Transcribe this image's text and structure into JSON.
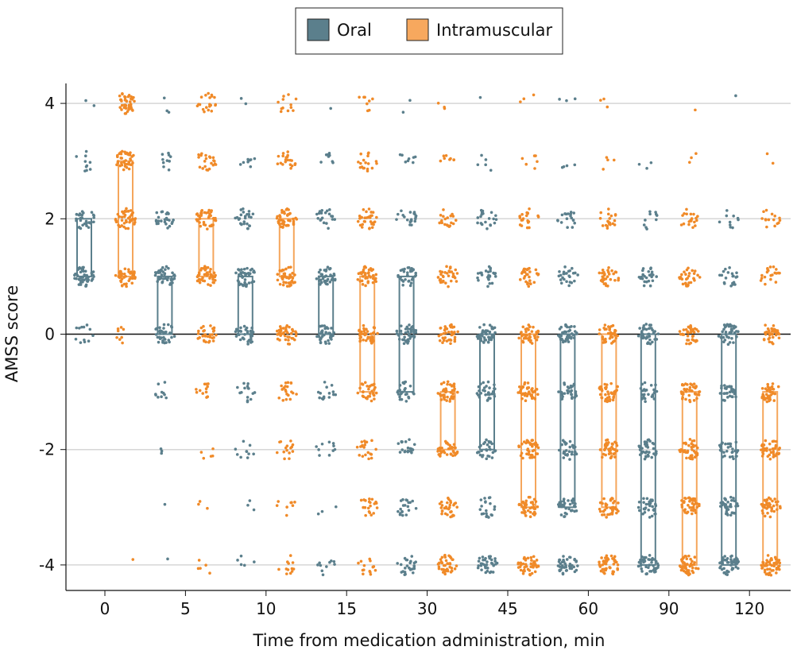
{
  "chart_data": {
    "type": "scatter",
    "subtype": "jittered strip plot with interquartile boxes",
    "title": "",
    "xlabel": "Time from medication administration, min",
    "ylabel": "AMSS score",
    "categories": [
      "0",
      "5",
      "10",
      "15",
      "30",
      "45",
      "60",
      "90",
      "120"
    ],
    "yticks": [
      4,
      2,
      0,
      -2,
      -4
    ],
    "ylim": [
      -4,
      4
    ],
    "grid": "horizontal",
    "legend_position": "top-center",
    "score_levels": [
      4,
      3,
      2,
      1,
      0,
      -1,
      -2,
      -3,
      -4
    ],
    "series": [
      {
        "name": "Oral",
        "color": "#5b7f8c",
        "iqr": [
          [
            1,
            2
          ],
          [
            0,
            1
          ],
          [
            0,
            1
          ],
          [
            0,
            1
          ],
          [
            -1,
            1
          ],
          [
            -2,
            0
          ],
          [
            -3,
            0
          ],
          [
            -4,
            0
          ],
          [
            -4,
            0
          ]
        ],
        "counts_per_level": [
          [
            2,
            10,
            30,
            50,
            12,
            0,
            0,
            0,
            0
          ],
          [
            3,
            10,
            25,
            40,
            35,
            10,
            3,
            1,
            1
          ],
          [
            2,
            8,
            25,
            40,
            35,
            15,
            10,
            3,
            5
          ],
          [
            1,
            8,
            20,
            40,
            40,
            15,
            10,
            3,
            10
          ],
          [
            2,
            8,
            20,
            35,
            40,
            25,
            20,
            20,
            25
          ],
          [
            1,
            5,
            20,
            25,
            40,
            30,
            30,
            20,
            35
          ],
          [
            3,
            4,
            18,
            25,
            40,
            30,
            30,
            35,
            40
          ],
          [
            0,
            3,
            10,
            25,
            40,
            25,
            35,
            35,
            45
          ],
          [
            1,
            0,
            10,
            20,
            40,
            30,
            30,
            35,
            50
          ]
        ]
      },
      {
        "name": "Intramuscular",
        "color": "#f08a28",
        "box_color": "#f5a65c",
        "legend_color": "#f7a85e",
        "iqr": [
          [
            1,
            3
          ],
          [
            1,
            2
          ],
          [
            1,
            2
          ],
          [
            -1,
            1
          ],
          [
            -2,
            -1
          ],
          [
            -3,
            0
          ],
          [
            -3,
            0
          ],
          [
            -4,
            -1
          ],
          [
            -4,
            -1
          ]
        ],
        "counts_per_level": [
          [
            40,
            40,
            45,
            40,
            8,
            0,
            0,
            0,
            1
          ],
          [
            20,
            22,
            40,
            45,
            30,
            12,
            5,
            3,
            5
          ],
          [
            12,
            20,
            40,
            40,
            40,
            20,
            15,
            8,
            12
          ],
          [
            8,
            18,
            30,
            40,
            40,
            30,
            20,
            20,
            15
          ],
          [
            3,
            8,
            20,
            35,
            40,
            40,
            40,
            30,
            40
          ],
          [
            3,
            6,
            20,
            30,
            40,
            40,
            40,
            40,
            45
          ],
          [
            3,
            4,
            20,
            30,
            40,
            40,
            40,
            40,
            50
          ],
          [
            1,
            3,
            20,
            30,
            35,
            40,
            40,
            40,
            50
          ],
          [
            0,
            2,
            15,
            20,
            35,
            40,
            40,
            40,
            50
          ]
        ]
      }
    ]
  }
}
